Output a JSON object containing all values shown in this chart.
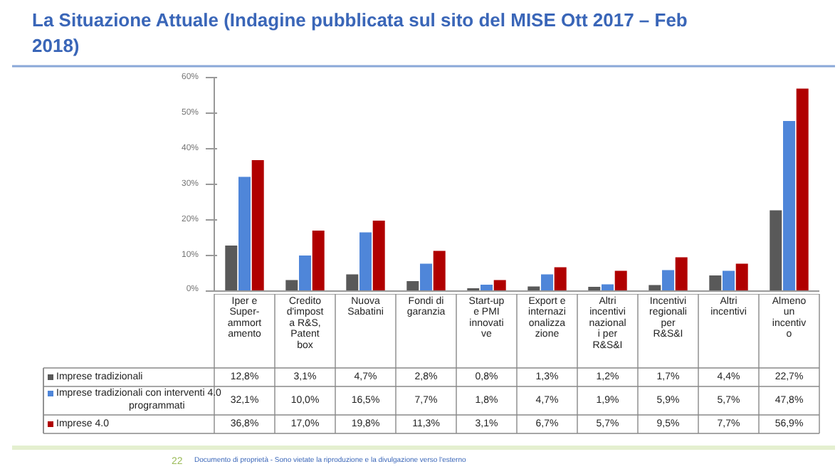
{
  "chart_data": {
    "type": "bar",
    "title": "La Situazione Attuale (Indagine pubblicata sul sito del MISE Ott 2017 – Feb 2018)",
    "categories": [
      "Iper e\nSuper-\nammort\namento",
      "Credito\nd'impost\na R&S,\nPatent\nbox",
      "Nuova\nSabatini",
      "Fondi di\ngaranzia",
      "Start-up\ne PMI\ninnovati\nve",
      "Export e\ninternazi\nonalizza\nzione",
      "Altri\nincentivi\nnazional\ni per\nR&S&I",
      "Incentivi\nregionali\nper\nR&S&I",
      "Altri\nincentivi",
      "Almeno\nun\nincentiv\no"
    ],
    "series": [
      {
        "name": "Imprese tradizionali",
        "color": "#595959",
        "values": [
          12.8,
          3.1,
          4.7,
          2.8,
          0.8,
          1.3,
          1.2,
          1.7,
          4.4,
          22.7
        ],
        "value_labels": [
          "12,8%",
          "3,1%",
          "4,7%",
          "2,8%",
          "0,8%",
          "1,3%",
          "1,2%",
          "1,7%",
          "4,4%",
          "22,7%"
        ]
      },
      {
        "name": "Imprese tradizionali con interventi 4.0 programmati",
        "color": "#4f86d9",
        "values": [
          32.1,
          10.0,
          16.5,
          7.7,
          1.8,
          4.7,
          1.9,
          5.9,
          5.7,
          47.8
        ],
        "value_labels": [
          "32,1%",
          "10,0%",
          "16,5%",
          "7,7%",
          "1,8%",
          "4,7%",
          "1,9%",
          "5,9%",
          "5,7%",
          "47,8%"
        ]
      },
      {
        "name": "Imprese 4.0",
        "color": "#b00000",
        "values": [
          36.8,
          17.0,
          19.8,
          11.3,
          3.1,
          6.7,
          5.7,
          9.5,
          7.7,
          56.9
        ],
        "value_labels": [
          "36,8%",
          "17,0%",
          "19,8%",
          "11,3%",
          "3,1%",
          "6,7%",
          "5,7%",
          "9,5%",
          "7,7%",
          "56,9%"
        ]
      }
    ],
    "ylim": [
      0,
      60
    ],
    "yticks": [
      {
        "value": 0,
        "label": "0%"
      },
      {
        "value": 10,
        "label": "10%"
      },
      {
        "value": 20,
        "label": "20%"
      },
      {
        "value": 30,
        "label": "30%"
      },
      {
        "value": 40,
        "label": "40%"
      },
      {
        "value": 50,
        "label": "50%"
      },
      {
        "value": 60,
        "label": "60%"
      }
    ],
    "grid": false,
    "legend": "bottom left",
    "annotations": [
      "22",
      "Documento di proprietà - Sono vietate la riproduzione e la divulgazione verso l'esterno"
    ]
  }
}
